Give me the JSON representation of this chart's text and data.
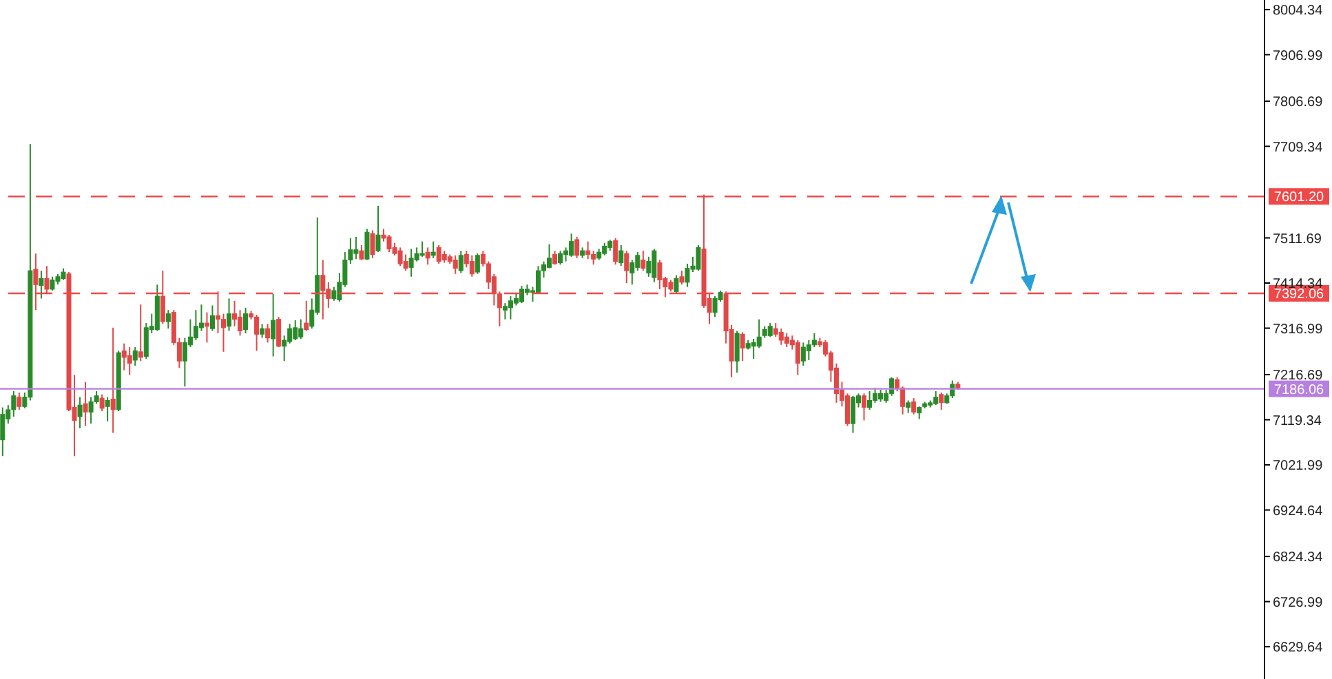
{
  "chart_data": {
    "type": "candlestick",
    "tick_labels": "y",
    "categories": [
      null,
      null,
      null,
      null,
      null,
      null,
      null,
      null,
      null,
      null,
      null,
      null,
      null,
      null,
      null,
      null,
      null,
      null,
      null,
      null,
      null,
      null,
      null,
      null,
      null,
      null,
      null,
      null,
      null,
      null,
      null,
      null,
      null,
      null,
      null,
      null,
      null,
      null,
      null,
      null,
      null,
      null,
      null,
      null,
      null,
      null,
      null,
      null,
      null,
      null,
      null,
      null,
      null,
      null,
      null,
      null,
      null,
      null,
      null,
      null,
      null,
      null,
      null,
      null,
      null,
      null,
      null,
      null,
      null,
      null,
      null,
      null,
      null,
      null,
      null,
      null,
      null,
      null,
      null,
      null,
      null,
      null,
      null,
      null,
      null,
      null,
      null,
      null,
      null,
      null,
      null,
      null,
      null,
      null,
      null,
      null,
      null,
      null,
      null,
      null,
      null,
      null,
      null,
      null,
      null,
      null,
      null,
      null,
      null,
      null,
      null,
      null,
      null,
      null,
      null,
      null,
      null,
      null,
      null,
      null,
      null,
      null,
      null,
      null,
      null,
      null,
      null,
      null,
      null,
      null,
      null,
      null,
      null,
      null,
      null,
      null,
      null,
      null,
      null,
      null,
      null,
      null,
      null,
      null,
      null,
      null,
      null,
      null,
      null,
      null,
      null,
      null,
      null,
      null,
      null,
      null,
      null,
      null,
      null,
      null,
      null,
      null,
      null,
      null,
      null,
      null,
      null,
      null,
      null,
      null,
      null,
      null,
      null,
      null,
      null,
      null,
      null,
      null,
      null,
      null,
      null,
      null,
      null,
      null,
      null,
      null,
      null,
      null,
      null,
      null,
      null,
      null,
      null,
      null,
      null,
      null,
      null,
      null,
      null,
      null,
      null,
      null,
      null,
      null,
      null,
      null,
      null,
      null,
      null,
      null,
      null,
      null,
      null,
      null,
      null,
      null,
      null,
      null,
      null,
      null,
      null,
      null,
      null,
      null,
      null,
      null,
      null,
      null,
      null
    ],
    "ohlc": [
      [
        7076,
        7146,
        7041,
        7131
      ],
      [
        7121,
        7151,
        7111,
        7141
      ],
      [
        7141,
        7181,
        7126,
        7171
      ],
      [
        7168,
        7178,
        7141,
        7148
      ],
      [
        7148,
        7178,
        7144,
        7168
      ],
      [
        7168,
        7714,
        7161,
        7441
      ],
      [
        7444,
        7478,
        7356,
        7411
      ],
      [
        7409,
        7441,
        7381,
        7424
      ],
      [
        7424,
        7451,
        7391,
        7401
      ],
      [
        7401,
        7428,
        7398,
        7421
      ],
      [
        7418,
        7434,
        7411,
        7428
      ],
      [
        7424,
        7446,
        7421,
        7438
      ],
      [
        7434,
        7438,
        7138,
        7141
      ],
      [
        7146,
        7216,
        7041,
        7118
      ],
      [
        7126,
        7168,
        7101,
        7151
      ],
      [
        7154,
        7201,
        7106,
        7136
      ],
      [
        7136,
        7168,
        7111,
        7158
      ],
      [
        7158,
        7181,
        7154,
        7171
      ],
      [
        7166,
        7174,
        7138,
        7144
      ],
      [
        7148,
        7168,
        7116,
        7161
      ],
      [
        7164,
        7318,
        7091,
        7141
      ],
      [
        7141,
        7268,
        7138,
        7264
      ],
      [
        7268,
        7284,
        7226,
        7254
      ],
      [
        7258,
        7276,
        7216,
        7241
      ],
      [
        7248,
        7276,
        7236,
        7268
      ],
      [
        7266,
        7368,
        7246,
        7254
      ],
      [
        7256,
        7328,
        7251,
        7318
      ],
      [
        7314,
        7348,
        7306,
        7321
      ],
      [
        7314,
        7411,
        7311,
        7386
      ],
      [
        7386,
        7441,
        7326,
        7331
      ],
      [
        7331,
        7356,
        7316,
        7348
      ],
      [
        7351,
        7356,
        7281,
        7286
      ],
      [
        7286,
        7296,
        7231,
        7246
      ],
      [
        7246,
        7296,
        7191,
        7286
      ],
      [
        7281,
        7336,
        7276,
        7298
      ],
      [
        7296,
        7356,
        7291,
        7321
      ],
      [
        7318,
        7368,
        7311,
        7328
      ],
      [
        7328,
        7351,
        7286,
        7321
      ],
      [
        7316,
        7366,
        7311,
        7344
      ],
      [
        7344,
        7396,
        7306,
        7336
      ],
      [
        7336,
        7348,
        7266,
        7318
      ],
      [
        7321,
        7381,
        7311,
        7348
      ],
      [
        7348,
        7376,
        7321,
        7336
      ],
      [
        7341,
        7356,
        7301,
        7311
      ],
      [
        7314,
        7361,
        7306,
        7348
      ],
      [
        7348,
        7354,
        7336,
        7341
      ],
      [
        7341,
        7346,
        7268,
        7304
      ],
      [
        7304,
        7326,
        7296,
        7316
      ],
      [
        7316,
        7326,
        7286,
        7296
      ],
      [
        7294,
        7391,
        7256,
        7334
      ],
      [
        7336,
        7341,
        7276,
        7278
      ],
      [
        7278,
        7301,
        7246,
        7291
      ],
      [
        7288,
        7326,
        7284,
        7316
      ],
      [
        7294,
        7334,
        7291,
        7318
      ],
      [
        7298,
        7336,
        7294,
        7316
      ],
      [
        7328,
        7376,
        7311,
        7314
      ],
      [
        7321,
        7381,
        7316,
        7356
      ],
      [
        7351,
        7556,
        7346,
        7431
      ],
      [
        7431,
        7464,
        7336,
        7398
      ],
      [
        7401,
        7416,
        7361,
        7381
      ],
      [
        7381,
        7406,
        7376,
        7398
      ],
      [
        7378,
        7436,
        7374,
        7416
      ],
      [
        7411,
        7481,
        7406,
        7464
      ],
      [
        7464,
        7511,
        7456,
        7486
      ],
      [
        7478,
        7514,
        7466,
        7486
      ],
      [
        7484,
        7496,
        7464,
        7466
      ],
      [
        7466,
        7531,
        7464,
        7524
      ],
      [
        7521,
        7528,
        7468,
        7476
      ],
      [
        7484,
        7581,
        7481,
        7518
      ],
      [
        7518,
        7531,
        7504,
        7511
      ],
      [
        7514,
        7518,
        7481,
        7488
      ],
      [
        7491,
        7501,
        7474,
        7478
      ],
      [
        7484,
        7491,
        7451,
        7456
      ],
      [
        7461,
        7476,
        7441,
        7446
      ],
      [
        7448,
        7488,
        7428,
        7468
      ],
      [
        7464,
        7491,
        7461,
        7478
      ],
      [
        7474,
        7504,
        7471,
        7478
      ],
      [
        7481,
        7491,
        7454,
        7468
      ],
      [
        7474,
        7504,
        7468,
        7481
      ],
      [
        7491,
        7496,
        7456,
        7461
      ],
      [
        7476,
        7484,
        7458,
        7464
      ],
      [
        7471,
        7476,
        7456,
        7461
      ],
      [
        7464,
        7474,
        7434,
        7446
      ],
      [
        7441,
        7484,
        7436,
        7474
      ],
      [
        7476,
        7484,
        7448,
        7456
      ],
      [
        7461,
        7474,
        7428,
        7434
      ],
      [
        7438,
        7478,
        7434,
        7474
      ],
      [
        7476,
        7484,
        7450,
        7456
      ],
      [
        7456,
        7461,
        7401,
        7416
      ],
      [
        7428,
        7434,
        7366,
        7391
      ],
      [
        7391,
        7396,
        7321,
        7361
      ],
      [
        7356,
        7371,
        7336,
        7364
      ],
      [
        7361,
        7386,
        7336,
        7376
      ],
      [
        7371,
        7391,
        7366,
        7381
      ],
      [
        7374,
        7408,
        7371,
        7401
      ],
      [
        7394,
        7411,
        7388,
        7401
      ],
      [
        7394,
        7406,
        7374,
        7398
      ],
      [
        7394,
        7451,
        7391,
        7441
      ],
      [
        7441,
        7461,
        7426,
        7454
      ],
      [
        7448,
        7498,
        7446,
        7468
      ],
      [
        7476,
        7484,
        7454,
        7456
      ],
      [
        7458,
        7484,
        7454,
        7478
      ],
      [
        7476,
        7491,
        7461,
        7484
      ],
      [
        7474,
        7521,
        7471,
        7504
      ],
      [
        7508,
        7514,
        7468,
        7474
      ],
      [
        7474,
        7491,
        7468,
        7484
      ],
      [
        7484,
        7504,
        7466,
        7476
      ],
      [
        7476,
        7484,
        7454,
        7466
      ],
      [
        7468,
        7488,
        7464,
        7481
      ],
      [
        7478,
        7501,
        7474,
        7494
      ],
      [
        7491,
        7508,
        7484,
        7504
      ],
      [
        7506,
        7511,
        7454,
        7461
      ],
      [
        7458,
        7496,
        7451,
        7484
      ],
      [
        7478,
        7484,
        7414,
        7441
      ],
      [
        7436,
        7464,
        7411,
        7458
      ],
      [
        7448,
        7481,
        7441,
        7474
      ],
      [
        7464,
        7484,
        7441,
        7446
      ],
      [
        7436,
        7471,
        7428,
        7461
      ],
      [
        7426,
        7488,
        7416,
        7484
      ],
      [
        7458,
        7464,
        7401,
        7421
      ],
      [
        7424,
        7428,
        7384,
        7406
      ],
      [
        7416,
        7421,
        7396,
        7401
      ],
      [
        7396,
        7431,
        7391,
        7424
      ],
      [
        7428,
        7441,
        7411,
        7416
      ],
      [
        7416,
        7456,
        7406,
        7446
      ],
      [
        7444,
        7471,
        7438,
        7451
      ],
      [
        7444,
        7496,
        7441,
        7491
      ],
      [
        7488,
        7605,
        7361,
        7366
      ],
      [
        7381,
        7391,
        7326,
        7351
      ],
      [
        7351,
        7386,
        7341,
        7381
      ],
      [
        7378,
        7398,
        7374,
        7394
      ],
      [
        7391,
        7396,
        7284,
        7311
      ],
      [
        7314,
        7324,
        7211,
        7246
      ],
      [
        7246,
        7311,
        7221,
        7306
      ],
      [
        7304,
        7308,
        7246,
        7274
      ],
      [
        7274,
        7291,
        7271,
        7284
      ],
      [
        7278,
        7294,
        7251,
        7286
      ],
      [
        7278,
        7336,
        7274,
        7298
      ],
      [
        7301,
        7321,
        7296,
        7314
      ],
      [
        7301,
        7328,
        7298,
        7321
      ],
      [
        7316,
        7328,
        7298,
        7304
      ],
      [
        7308,
        7316,
        7281,
        7291
      ],
      [
        7298,
        7306,
        7276,
        7284
      ],
      [
        7291,
        7301,
        7271,
        7281
      ],
      [
        7286,
        7291,
        7216,
        7241
      ],
      [
        7246,
        7286,
        7236,
        7276
      ],
      [
        7268,
        7291,
        7248,
        7281
      ],
      [
        7281,
        7306,
        7276,
        7291
      ],
      [
        7288,
        7296,
        7276,
        7281
      ],
      [
        7286,
        7291,
        7256,
        7261
      ],
      [
        7264,
        7268,
        7201,
        7226
      ],
      [
        7231,
        7241,
        7156,
        7176
      ],
      [
        7184,
        7201,
        7148,
        7161
      ],
      [
        7171,
        7176,
        7106,
        7111
      ],
      [
        7111,
        7171,
        7091,
        7168
      ],
      [
        7156,
        7176,
        7146,
        7171
      ],
      [
        7171,
        7176,
        7118,
        7146
      ],
      [
        7146,
        7181,
        7141,
        7161
      ],
      [
        7161,
        7188,
        7156,
        7176
      ],
      [
        7164,
        7184,
        7158,
        7176
      ],
      [
        7161,
        7184,
        7156,
        7176
      ],
      [
        7176,
        7211,
        7171,
        7208
      ],
      [
        7206,
        7211,
        7181,
        7186
      ],
      [
        7188,
        7191,
        7131,
        7148
      ],
      [
        7146,
        7161,
        7134,
        7156
      ],
      [
        7158,
        7166,
        7131,
        7136
      ],
      [
        7134,
        7148,
        7121,
        7146
      ],
      [
        7148,
        7158,
        7144,
        7154
      ],
      [
        7151,
        7161,
        7146,
        7156
      ],
      [
        7154,
        7181,
        7151,
        7168
      ],
      [
        7174,
        7178,
        7141,
        7156
      ],
      [
        7156,
        7176,
        7154,
        7171
      ],
      [
        7171,
        7204,
        7166,
        7196
      ],
      [
        7196,
        7201,
        7184,
        7188
      ],
      null,
      null,
      null,
      null,
      null,
      null,
      null,
      null,
      null,
      null,
      null,
      null,
      null,
      null,
      null,
      null,
      null,
      null,
      null,
      null,
      null,
      null,
      null,
      null,
      null,
      null,
      null,
      null,
      null,
      null,
      null,
      null,
      null,
      null,
      null,
      null,
      null,
      null,
      null,
      null,
      null,
      null,
      null,
      null,
      null,
      null,
      null,
      null,
      null,
      null,
      null,
      null,
      null,
      null,
      null
    ],
    "ylim": [
      6560,
      8025
    ],
    "yticks": [
      8004.34,
      7906.99,
      7806.69,
      7709.34,
      7511.69,
      7414.34,
      7316.99,
      7216.69,
      7119.34,
      7021.99,
      6924.64,
      6824.34,
      6726.99,
      6629.64
    ],
    "ref_lines": [
      {
        "axis": "y",
        "value": 7601.2,
        "label": "7601.20",
        "color": "#f04848",
        "line_style": "dashed"
      },
      {
        "axis": "y",
        "value": 7392.06,
        "label": "7392.06",
        "color": "#f04848",
        "line_style": "dashed"
      },
      {
        "axis": "y",
        "value": 7186.06,
        "label": "7186.06",
        "color": "#b77fe0",
        "line_style": "solid"
      }
    ]
  }
}
